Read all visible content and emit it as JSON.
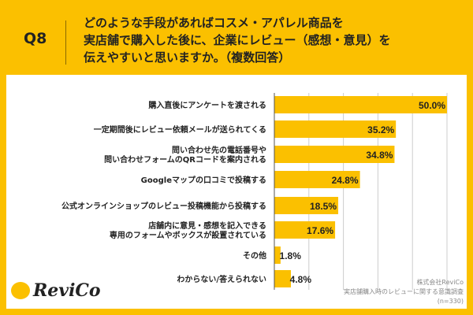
{
  "header": {
    "question_no": "Q8",
    "title_lines": [
      "どのような手段があればコスメ・アパレル商品を",
      "実店舗で購入した後に、企業にレビュー（感想・意見）を",
      "伝えやすいと思いますか。（複数回答）"
    ]
  },
  "footer": {
    "logo": "ReviCo",
    "source_lines": [
      "株式会社ReviCo",
      "実店舗購入時のレビューに関する意識調査",
      "(n=330)"
    ]
  },
  "colors": {
    "background": "#FBC000",
    "bar": "#FBC000",
    "grid": "#CCCCCC"
  },
  "chart_data": {
    "type": "bar",
    "orientation": "horizontal",
    "categories": [
      [
        "購入直後にアンケートを渡される"
      ],
      [
        "一定期間後にレビュー依頼メールが送られてくる"
      ],
      [
        "問い合わせ先の電話番号や",
        "問い合わせフォームのQRコードを案内される"
      ],
      [
        "Googleマップの口コミで投稿する"
      ],
      [
        "公式オンラインショップのレビュー投稿機能から投稿する"
      ],
      [
        "店舗内に意見・感想を記入できる",
        "専用のフォームやボックスが設置されている"
      ],
      [
        "その他"
      ],
      [
        "わからない/答えられない"
      ]
    ],
    "values": [
      50.0,
      35.2,
      34.8,
      24.8,
      18.5,
      17.6,
      1.8,
      4.8
    ],
    "labels": [
      "50.0%",
      "35.2%",
      "34.8%",
      "24.8%",
      "18.5%",
      "17.6%",
      "1.8%",
      "4.8%"
    ],
    "xlim": [
      0,
      50
    ],
    "grid": true,
    "gridlines": [
      10,
      20,
      30,
      40,
      50
    ]
  }
}
